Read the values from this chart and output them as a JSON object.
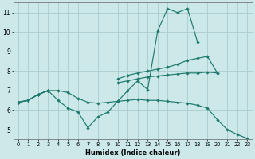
{
  "title": "",
  "xlabel": "Humidex (Indice chaleur)",
  "bg_color": "#cce8e8",
  "grid_color": "#aacccc",
  "line_color": "#1e7a6e",
  "x_values": [
    0,
    1,
    2,
    3,
    4,
    5,
    6,
    7,
    8,
    9,
    10,
    11,
    12,
    13,
    14,
    15,
    16,
    17,
    18,
    19,
    20,
    21,
    22,
    23
  ],
  "line1": [
    6.4,
    6.5,
    6.8,
    7.0,
    6.5,
    6.1,
    5.9,
    5.1,
    5.65,
    5.9,
    6.45,
    7.0,
    7.5,
    7.05,
    10.05,
    11.2,
    11.0,
    11.2,
    9.5,
    null,
    null,
    null,
    null,
    null
  ],
  "line2": [
    6.4,
    6.5,
    6.8,
    7.0,
    null,
    null,
    null,
    null,
    null,
    null,
    7.6,
    7.78,
    7.9,
    8.0,
    8.1,
    8.2,
    8.35,
    8.55,
    8.65,
    8.75,
    7.9,
    null,
    null,
    null
  ],
  "line3": [
    6.4,
    6.5,
    6.8,
    7.0,
    null,
    null,
    null,
    null,
    null,
    null,
    7.4,
    7.5,
    7.6,
    7.7,
    7.75,
    7.8,
    7.85,
    7.9,
    7.9,
    7.95,
    7.9,
    null,
    null,
    null
  ],
  "line4": [
    6.4,
    6.5,
    6.8,
    7.0,
    7.0,
    6.9,
    6.6,
    6.4,
    6.35,
    6.4,
    6.45,
    6.5,
    6.55,
    6.5,
    6.5,
    6.45,
    6.4,
    6.35,
    6.25,
    6.1,
    5.5,
    5.0,
    4.75,
    4.55
  ],
  "xlim": [
    -0.5,
    23.5
  ],
  "ylim": [
    4.5,
    11.5
  ],
  "yticks": [
    5,
    6,
    7,
    8,
    9,
    10,
    11
  ],
  "xticks": [
    0,
    1,
    2,
    3,
    4,
    5,
    6,
    7,
    8,
    9,
    10,
    11,
    12,
    13,
    14,
    15,
    16,
    17,
    18,
    19,
    20,
    21,
    22,
    23
  ]
}
